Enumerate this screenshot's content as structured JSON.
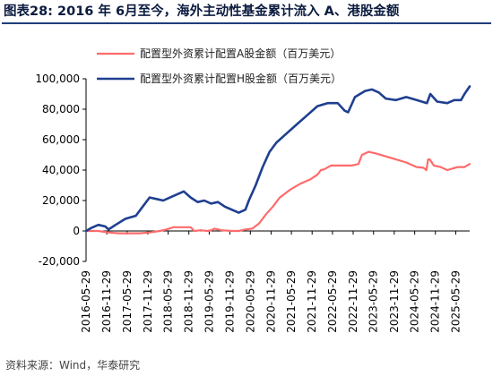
{
  "header": {
    "title": "图表28:  2016 年 6月至今，海外主动性基金累计流入 A、港股金额"
  },
  "footer": {
    "source": "资料来源：Wind，华泰研究"
  },
  "chart_data": {
    "type": "line",
    "title": "",
    "xlabel": "",
    "ylabel": "",
    "ylim": [
      -20000,
      100000
    ],
    "yticks": [
      -20000,
      0,
      20000,
      40000,
      60000,
      80000,
      100000
    ],
    "ytick_labels": [
      "-20,000",
      "0",
      "20,000",
      "40,000",
      "60,000",
      "80,000",
      "100,000"
    ],
    "xlim": [
      "2016-05-29",
      "2025-09-30"
    ],
    "xticks": [
      "2016-05-29",
      "2016-11-29",
      "2017-05-29",
      "2017-11-29",
      "2018-05-29",
      "2018-11-29",
      "2019-05-29",
      "2019-11-29",
      "2020-05-29",
      "2020-11-29",
      "2021-05-29",
      "2021-11-29",
      "2022-05-29",
      "2022-11-29",
      "2023-05-29",
      "2023-11-29",
      "2024-05-29",
      "2024-11-29",
      "2025-05-29"
    ],
    "grid": false,
    "legend_position": "top-left",
    "series": [
      {
        "name": "配置型外资累计配置A股金额（百万美元）",
        "color": "#ff6b6b",
        "points": [
          [
            "2016-05-29",
            0
          ],
          [
            "2016-09-15",
            0
          ],
          [
            "2016-12-15",
            -1000
          ],
          [
            "2017-03-15",
            -1500
          ],
          [
            "2017-06-15",
            -1500
          ],
          [
            "2017-09-15",
            -1500
          ],
          [
            "2017-12-15",
            -1000
          ],
          [
            "2018-03-15",
            0
          ],
          [
            "2018-05-15",
            1000
          ],
          [
            "2018-07-15",
            2500
          ],
          [
            "2018-10-15",
            2500
          ],
          [
            "2018-12-15",
            2500
          ],
          [
            "2019-01-15",
            0
          ],
          [
            "2019-03-15",
            500
          ],
          [
            "2019-05-15",
            0
          ],
          [
            "2019-06-15",
            500
          ],
          [
            "2019-07-15",
            1500
          ],
          [
            "2019-09-15",
            500
          ],
          [
            "2019-12-15",
            0
          ],
          [
            "2020-02-15",
            0
          ],
          [
            "2020-04-15",
            1000
          ],
          [
            "2020-06-15",
            1500
          ],
          [
            "2020-08-15",
            5000
          ],
          [
            "2020-10-15",
            11000
          ],
          [
            "2020-12-15",
            16000
          ],
          [
            "2021-02-15",
            22000
          ],
          [
            "2021-05-15",
            27000
          ],
          [
            "2021-08-15",
            31000
          ],
          [
            "2021-11-15",
            34000
          ],
          [
            "2022-01-15",
            37000
          ],
          [
            "2022-02-15",
            40000
          ],
          [
            "2022-03-15",
            40500
          ],
          [
            "2022-05-15",
            43000
          ],
          [
            "2022-08-15",
            43000
          ],
          [
            "2022-11-15",
            43000
          ],
          [
            "2023-01-15",
            44000
          ],
          [
            "2023-02-15",
            50000
          ],
          [
            "2023-04-15",
            52000
          ],
          [
            "2023-06-15",
            51000
          ],
          [
            "2023-09-15",
            49000
          ],
          [
            "2023-12-15",
            47000
          ],
          [
            "2024-03-15",
            45000
          ],
          [
            "2024-06-15",
            42000
          ],
          [
            "2024-08-15",
            41500
          ],
          [
            "2024-09-10",
            40000
          ],
          [
            "2024-09-25",
            47000
          ],
          [
            "2024-10-10",
            47000
          ],
          [
            "2024-11-15",
            43000
          ],
          [
            "2025-01-15",
            42000
          ],
          [
            "2025-03-15",
            40000
          ],
          [
            "2025-06-15",
            42000
          ],
          [
            "2025-08-15",
            42000
          ],
          [
            "2025-09-30",
            44000
          ]
        ]
      },
      {
        "name": "配置型外资累计配置H股金额（百万美元）",
        "color": "#1f3f8f",
        "points": [
          [
            "2016-05-29",
            0
          ],
          [
            "2016-07-15",
            2000
          ],
          [
            "2016-09-15",
            4000
          ],
          [
            "2016-11-15",
            3000
          ],
          [
            "2016-12-15",
            1000
          ],
          [
            "2017-02-15",
            4000
          ],
          [
            "2017-05-15",
            8000
          ],
          [
            "2017-08-15",
            10000
          ],
          [
            "2017-10-15",
            16000
          ],
          [
            "2017-12-15",
            22000
          ],
          [
            "2018-02-15",
            21000
          ],
          [
            "2018-04-15",
            20000
          ],
          [
            "2018-06-15",
            22000
          ],
          [
            "2018-08-15",
            24000
          ],
          [
            "2018-10-15",
            26000
          ],
          [
            "2018-12-15",
            22000
          ],
          [
            "2019-02-15",
            19000
          ],
          [
            "2019-04-15",
            20000
          ],
          [
            "2019-06-15",
            18000
          ],
          [
            "2019-08-15",
            19000
          ],
          [
            "2019-10-15",
            16000
          ],
          [
            "2019-12-15",
            14000
          ],
          [
            "2020-02-15",
            12000
          ],
          [
            "2020-04-15",
            14000
          ],
          [
            "2020-05-15",
            20000
          ],
          [
            "2020-07-15",
            30000
          ],
          [
            "2020-09-15",
            42000
          ],
          [
            "2020-11-15",
            52000
          ],
          [
            "2021-01-15",
            58000
          ],
          [
            "2021-04-15",
            64000
          ],
          [
            "2021-07-15",
            70000
          ],
          [
            "2021-10-15",
            76000
          ],
          [
            "2022-01-15",
            82000
          ],
          [
            "2022-04-15",
            84000
          ],
          [
            "2022-07-15",
            84000
          ],
          [
            "2022-09-15",
            79000
          ],
          [
            "2022-10-15",
            78000
          ],
          [
            "2022-12-15",
            88000
          ],
          [
            "2023-03-15",
            92000
          ],
          [
            "2023-05-15",
            93000
          ],
          [
            "2023-07-15",
            91000
          ],
          [
            "2023-09-15",
            87000
          ],
          [
            "2023-12-15",
            86000
          ],
          [
            "2024-03-15",
            88000
          ],
          [
            "2024-06-15",
            86000
          ],
          [
            "2024-09-15",
            84000
          ],
          [
            "2024-10-15",
            90000
          ],
          [
            "2024-12-15",
            85000
          ],
          [
            "2025-03-15",
            84000
          ],
          [
            "2025-05-15",
            86000
          ],
          [
            "2025-07-15",
            86000
          ],
          [
            "2025-08-15",
            90000
          ],
          [
            "2025-09-30",
            95000
          ]
        ]
      }
    ]
  }
}
